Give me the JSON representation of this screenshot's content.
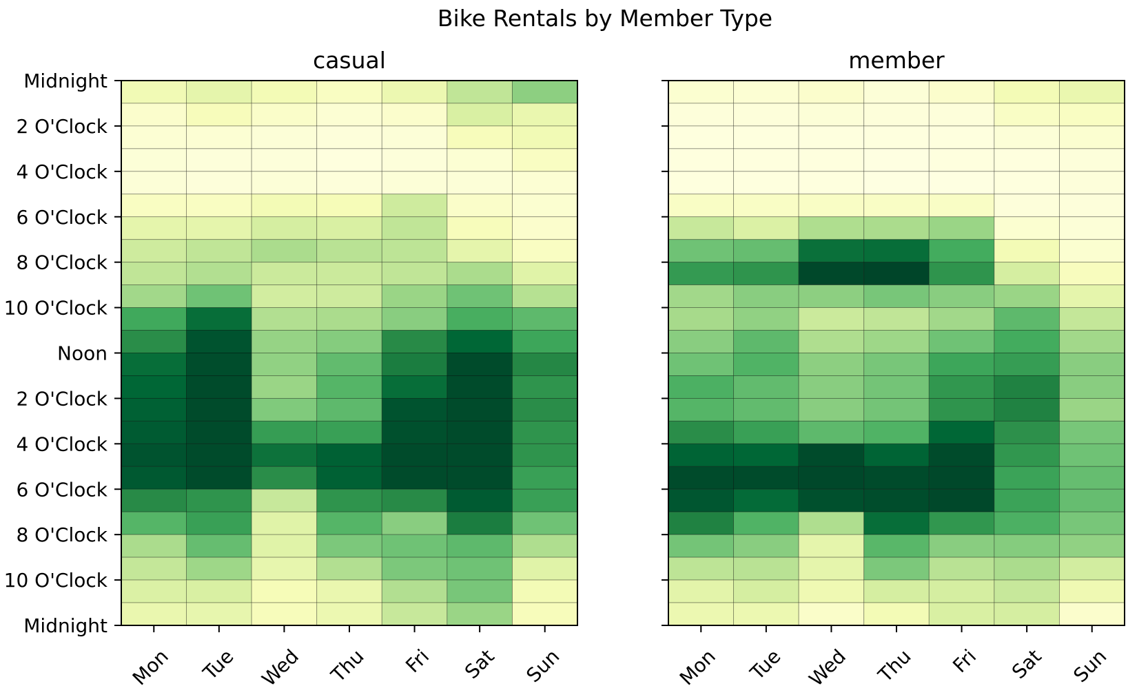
{
  "chart_data": {
    "type": "heatmap",
    "title": "Bike Rentals by Member Type",
    "colormap": [
      "#ffffe5",
      "#f7fcb9",
      "#d9f0a3",
      "#addd8e",
      "#78c679",
      "#41ab5d",
      "#238443",
      "#006837",
      "#004529"
    ],
    "x_categories": [
      "Mon",
      "Tue",
      "Wed",
      "Thu",
      "Fri",
      "Sat",
      "Sun"
    ],
    "y_ticks": [
      "Midnight",
      "2 O'Clock",
      "4 O'Clock",
      "6 O'Clock",
      "8 O'Clock",
      "10 O'Clock",
      "Noon",
      "2 O'Clock",
      "4 O'Clock",
      "6 O'Clock",
      "8 O'Clock",
      "10 O'Clock",
      "Midnight"
    ],
    "value_scale": [
      0,
      1
    ],
    "panels": [
      {
        "subtitle": "casual",
        "values": [
          [
            0.15,
            0.2,
            0.14,
            0.1,
            0.17,
            0.32,
            0.45
          ],
          [
            0.07,
            0.12,
            0.08,
            0.05,
            0.07,
            0.25,
            0.18
          ],
          [
            0.05,
            0.05,
            0.04,
            0.03,
            0.04,
            0.12,
            0.15
          ],
          [
            0.04,
            0.03,
            0.03,
            0.02,
            0.03,
            0.05,
            0.1
          ],
          [
            0.04,
            0.03,
            0.04,
            0.03,
            0.04,
            0.04,
            0.05
          ],
          [
            0.1,
            0.1,
            0.14,
            0.13,
            0.28,
            0.08,
            0.06
          ],
          [
            0.2,
            0.2,
            0.26,
            0.25,
            0.32,
            0.12,
            0.07
          ],
          [
            0.28,
            0.32,
            0.38,
            0.34,
            0.33,
            0.2,
            0.1
          ],
          [
            0.32,
            0.36,
            0.29,
            0.29,
            0.32,
            0.38,
            0.22
          ],
          [
            0.4,
            0.52,
            0.27,
            0.28,
            0.42,
            0.52,
            0.35
          ],
          [
            0.63,
            0.85,
            0.36,
            0.38,
            0.46,
            0.61,
            0.56
          ],
          [
            0.72,
            0.95,
            0.43,
            0.47,
            0.73,
            0.88,
            0.64
          ],
          [
            0.85,
            0.97,
            0.44,
            0.55,
            0.78,
            0.98,
            0.74
          ],
          [
            0.88,
            0.98,
            0.42,
            0.58,
            0.85,
            0.98,
            0.7
          ],
          [
            0.9,
            0.98,
            0.48,
            0.56,
            0.95,
            0.98,
            0.72
          ],
          [
            0.92,
            0.98,
            0.67,
            0.66,
            0.96,
            0.98,
            0.7
          ],
          [
            0.95,
            0.98,
            0.83,
            0.9,
            0.98,
            0.98,
            0.7
          ],
          [
            0.93,
            0.98,
            0.72,
            0.9,
            0.98,
            0.98,
            0.66
          ],
          [
            0.73,
            0.7,
            0.3,
            0.7,
            0.73,
            0.92,
            0.66
          ],
          [
            0.58,
            0.66,
            0.22,
            0.58,
            0.46,
            0.78,
            0.52
          ],
          [
            0.38,
            0.54,
            0.22,
            0.49,
            0.52,
            0.56,
            0.37
          ],
          [
            0.31,
            0.41,
            0.19,
            0.36,
            0.49,
            0.52,
            0.22
          ],
          [
            0.24,
            0.25,
            0.13,
            0.18,
            0.36,
            0.5,
            0.14
          ],
          [
            0.18,
            0.19,
            0.12,
            0.17,
            0.3,
            0.42,
            0.12
          ]
        ]
      },
      {
        "subtitle": "member",
        "values": [
          [
            0.06,
            0.05,
            0.07,
            0.04,
            0.07,
            0.14,
            0.18
          ],
          [
            0.03,
            0.03,
            0.04,
            0.03,
            0.03,
            0.09,
            0.1
          ],
          [
            0.02,
            0.02,
            0.02,
            0.02,
            0.02,
            0.04,
            0.06
          ],
          [
            0.02,
            0.02,
            0.02,
            0.01,
            0.02,
            0.02,
            0.03
          ],
          [
            0.02,
            0.02,
            0.02,
            0.01,
            0.01,
            0.02,
            0.03
          ],
          [
            0.09,
            0.09,
            0.09,
            0.09,
            0.09,
            0.03,
            0.03
          ],
          [
            0.3,
            0.24,
            0.37,
            0.38,
            0.42,
            0.06,
            0.04
          ],
          [
            0.52,
            0.54,
            0.84,
            0.85,
            0.62,
            0.14,
            0.06
          ],
          [
            0.68,
            0.7,
            0.99,
            1.0,
            0.7,
            0.26,
            0.11
          ],
          [
            0.4,
            0.46,
            0.45,
            0.5,
            0.46,
            0.42,
            0.2
          ],
          [
            0.39,
            0.44,
            0.29,
            0.32,
            0.4,
            0.56,
            0.31
          ],
          [
            0.46,
            0.56,
            0.37,
            0.41,
            0.52,
            0.62,
            0.4
          ],
          [
            0.52,
            0.59,
            0.45,
            0.5,
            0.64,
            0.67,
            0.46
          ],
          [
            0.6,
            0.55,
            0.46,
            0.51,
            0.69,
            0.76,
            0.46
          ],
          [
            0.58,
            0.55,
            0.46,
            0.51,
            0.7,
            0.76,
            0.42
          ],
          [
            0.72,
            0.66,
            0.56,
            0.59,
            0.88,
            0.71,
            0.5
          ],
          [
            0.89,
            0.88,
            0.98,
            0.89,
            0.98,
            0.69,
            0.52
          ],
          [
            0.98,
            0.98,
            0.99,
            0.98,
            0.99,
            0.65,
            0.54
          ],
          [
            0.94,
            0.86,
            0.96,
            0.97,
            0.99,
            0.65,
            0.54
          ],
          [
            0.76,
            0.59,
            0.37,
            0.85,
            0.69,
            0.6,
            0.5
          ],
          [
            0.51,
            0.46,
            0.2,
            0.57,
            0.46,
            0.47,
            0.44
          ],
          [
            0.33,
            0.34,
            0.2,
            0.49,
            0.34,
            0.38,
            0.27
          ],
          [
            0.21,
            0.26,
            0.16,
            0.26,
            0.26,
            0.3,
            0.16
          ],
          [
            0.17,
            0.17,
            0.08,
            0.14,
            0.25,
            0.26,
            0.07
          ]
        ]
      }
    ]
  }
}
